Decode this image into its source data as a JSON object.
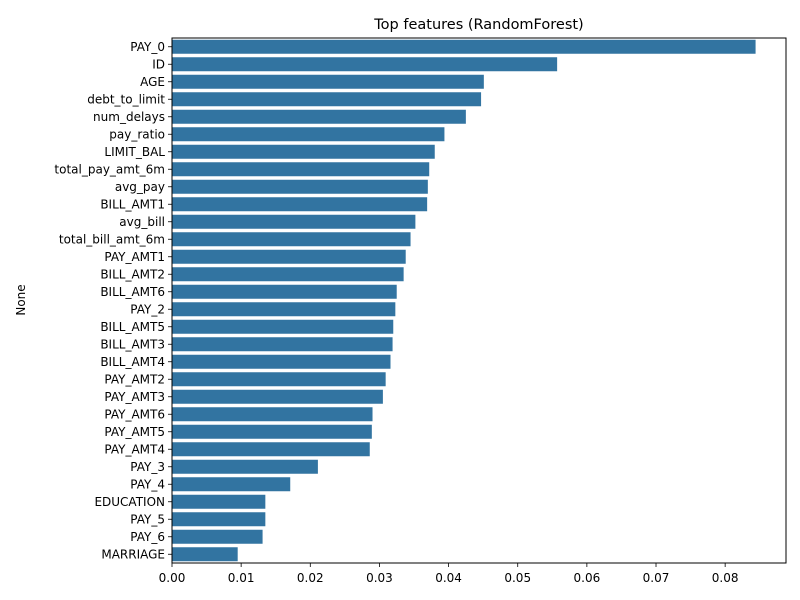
{
  "chart_data": {
    "type": "bar",
    "orientation": "horizontal",
    "title": "Top features (RandomForest)",
    "xlabel": "",
    "ylabel": "None",
    "bar_color": "#3274a1",
    "xlim": [
      0.0,
      0.0888
    ],
    "xticks": [
      "0.00",
      "0.01",
      "0.02",
      "0.03",
      "0.04",
      "0.05",
      "0.06",
      "0.07",
      "0.08"
    ],
    "xtick_values": [
      0.0,
      0.01,
      0.02,
      0.03,
      0.04,
      0.05,
      0.06,
      0.07,
      0.08
    ],
    "grid": false,
    "categories": [
      "PAY_0",
      "ID",
      "AGE",
      "debt_to_limit",
      "num_delays",
      "pay_ratio",
      "LIMIT_BAL",
      "total_pay_amt_6m",
      "avg_pay",
      "BILL_AMT1",
      "avg_bill",
      "total_bill_amt_6m",
      "PAY_AMT1",
      "BILL_AMT2",
      "BILL_AMT6",
      "PAY_2",
      "BILL_AMT5",
      "BILL_AMT3",
      "BILL_AMT4",
      "PAY_AMT2",
      "PAY_AMT3",
      "PAY_AMT6",
      "PAY_AMT5",
      "PAY_AMT4",
      "PAY_3",
      "PAY_4",
      "EDUCATION",
      "PAY_5",
      "PAY_6",
      "MARRIAGE"
    ],
    "values": [
      0.0844,
      0.0557,
      0.0451,
      0.0447,
      0.0425,
      0.0394,
      0.038,
      0.0372,
      0.037,
      0.0369,
      0.0352,
      0.0345,
      0.0338,
      0.0335,
      0.0325,
      0.0323,
      0.032,
      0.0319,
      0.0316,
      0.0309,
      0.0305,
      0.029,
      0.0289,
      0.0286,
      0.0211,
      0.0171,
      0.0135,
      0.0135,
      0.0131,
      0.0095
    ]
  }
}
